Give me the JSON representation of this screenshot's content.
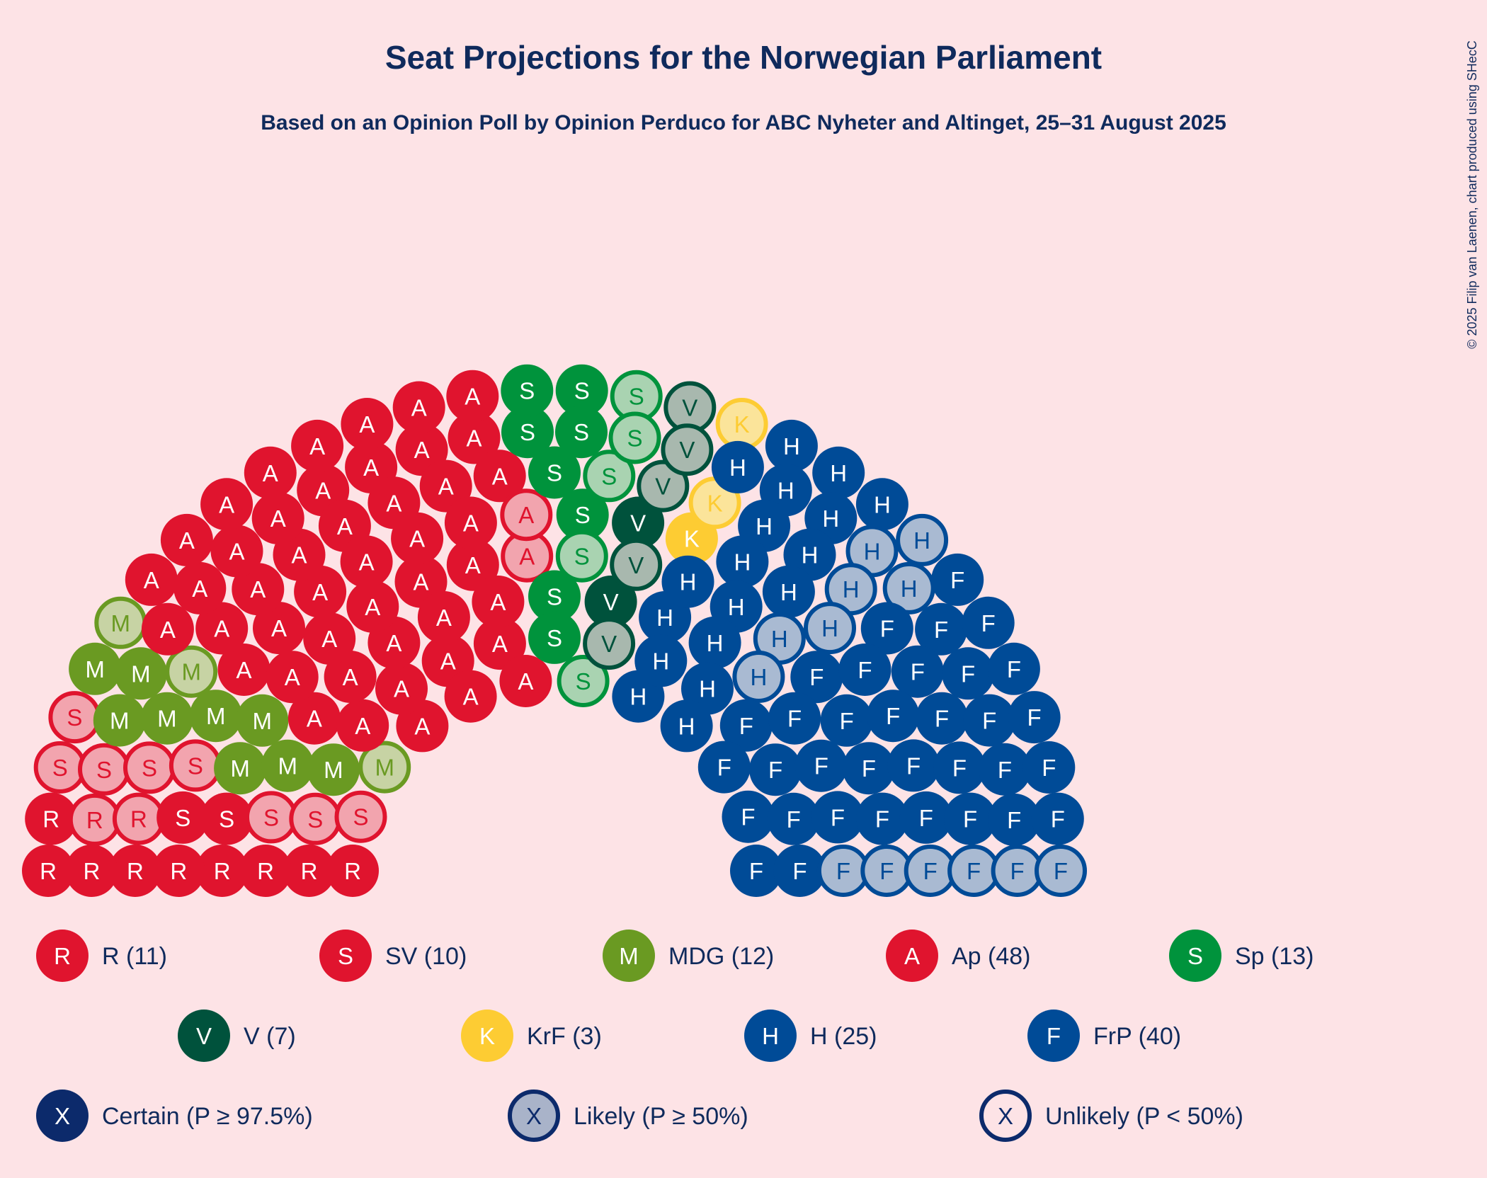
{
  "chart_data": {
    "type": "parliament",
    "title": "Seat Projections for the Norwegian Parliament",
    "subtitle": "Based on an Opinion Poll by Opinion Perduco for ABC Nyheter and Altinget, 25–31 August 2025",
    "copyright": "© 2025 Filip van Laenen, chart produced using SHecC",
    "total_seats": 169,
    "parties": [
      {
        "letter": "R",
        "name": "R",
        "legend": "R (11)",
        "seats": 11,
        "certain": 9,
        "likely": 0,
        "unlikely": 2,
        "color": "#e0142e",
        "light": "#f2a4ae"
      },
      {
        "letter": "S",
        "name": "SV",
        "legend": "SV (10)",
        "seats": 10,
        "certain": 2,
        "likely": 0,
        "unlikely": 8,
        "color": "#e0142e",
        "light": "#f2a4ae"
      },
      {
        "letter": "M",
        "name": "MDG",
        "legend": "MDG (12)",
        "seats": 12,
        "certain": 9,
        "likely": 0,
        "unlikely": 3,
        "color": "#6a9a22",
        "light": "#c7d3a4"
      },
      {
        "letter": "A",
        "name": "Ap",
        "legend": "Ap (48)",
        "seats": 48,
        "certain": 46,
        "likely": 0,
        "unlikely": 2,
        "color": "#e0142e",
        "light": "#f2a4ae"
      },
      {
        "letter": "S",
        "name": "Sp",
        "legend": "Sp (13)",
        "seats": 13,
        "certain": 8,
        "likely": 0,
        "unlikely": 5,
        "color": "#00933c",
        "light": "#a9d3b1"
      },
      {
        "letter": "V",
        "name": "V",
        "legend": "V (7)",
        "seats": 7,
        "certain": 2,
        "likely": 0,
        "unlikely": 5,
        "color": "#00523c",
        "light": "#a8b8ae"
      },
      {
        "letter": "K",
        "name": "KrF",
        "legend": "KrF (3)",
        "seats": 3,
        "certain": 1,
        "likely": 0,
        "unlikely": 2,
        "color": "#fdcc33",
        "light": "#fbe49a"
      },
      {
        "letter": "H",
        "name": "H",
        "legend": "H (25)",
        "seats": 25,
        "certain": 18,
        "likely": 0,
        "unlikely": 7,
        "color": "#004b97",
        "light": "#a9bad2"
      },
      {
        "letter": "F",
        "name": "FrP",
        "legend": "FrP (40)",
        "seats": 40,
        "certain": 34,
        "likely": 0,
        "unlikely": 6,
        "color": "#004b97",
        "light": "#a9bad2"
      }
    ],
    "probability_legend": [
      {
        "letter": "X",
        "label": "Certain (P ≥ 97.5%)"
      },
      {
        "letter": "X",
        "label": "Likely (P ≥ 50%)"
      },
      {
        "letter": "X",
        "label": "Unlikely (P < 50%)"
      }
    ],
    "colors": {
      "background": "#fde3e6",
      "text": "#0f2a5c",
      "probability_marker": "#0c2a6b"
    }
  }
}
